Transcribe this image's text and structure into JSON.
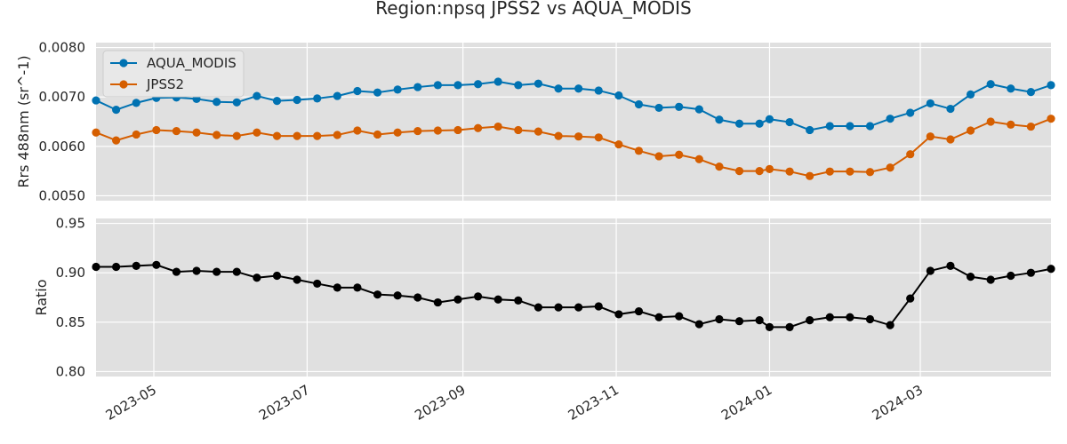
{
  "chart_data": {
    "type": "line",
    "title": "Region:npsq JPSS2 vs AQUA_MODIS",
    "x_dates": [
      "2023-04-08",
      "2023-04-16",
      "2023-04-24",
      "2023-05-02",
      "2023-05-10",
      "2023-05-18",
      "2023-05-26",
      "2023-06-03",
      "2023-06-11",
      "2023-06-19",
      "2023-06-27",
      "2023-07-05",
      "2023-07-13",
      "2023-07-21",
      "2023-07-29",
      "2023-08-06",
      "2023-08-14",
      "2023-08-22",
      "2023-08-30",
      "2023-09-07",
      "2023-09-15",
      "2023-09-23",
      "2023-10-01",
      "2023-10-09",
      "2023-10-17",
      "2023-10-25",
      "2023-11-02",
      "2023-11-10",
      "2023-11-18",
      "2023-11-26",
      "2023-12-04",
      "2023-12-12",
      "2023-12-20",
      "2023-12-28",
      "2024-01-01",
      "2024-01-09",
      "2024-01-17",
      "2024-01-25",
      "2024-02-02",
      "2024-02-10",
      "2024-02-18",
      "2024-02-26",
      "2024-03-05",
      "2024-03-13",
      "2024-03-21",
      "2024-03-29",
      "2024-04-06",
      "2024-04-14",
      "2024-04-22"
    ],
    "xlim": [
      "2023-04-08",
      "2024-04-22"
    ],
    "x_ticks": [
      "2023-05",
      "2023-07",
      "2023-09",
      "2023-11",
      "2024-01",
      "2024-03"
    ],
    "x_tick_dates": [
      "2023-05-01",
      "2023-07-01",
      "2023-09-01",
      "2023-11-01",
      "2024-01-01",
      "2024-03-01"
    ],
    "grid": true,
    "panels": [
      {
        "ylabel": "Rrs 488nm (sr^-1)",
        "ylim": [
          0.0049,
          0.0081
        ],
        "yticks": [
          0.005,
          0.006,
          0.007,
          0.008
        ],
        "ytick_labels": [
          "0.0050",
          "0.0060",
          "0.0070",
          "0.0080"
        ],
        "legend": "top-left",
        "series": [
          {
            "name": "AQUA_MODIS",
            "color": "#0072b2",
            "values": [
              0.00693,
              0.00674,
              0.00688,
              0.00698,
              0.00699,
              0.00696,
              0.0069,
              0.00689,
              0.00702,
              0.00692,
              0.00694,
              0.00697,
              0.00702,
              0.00712,
              0.00709,
              0.00715,
              0.0072,
              0.00724,
              0.00724,
              0.00726,
              0.00731,
              0.00724,
              0.00727,
              0.00717,
              0.00717,
              0.00713,
              0.00703,
              0.00685,
              0.00678,
              0.0068,
              0.00675,
              0.00654,
              0.00646,
              0.00646,
              0.00655,
              0.00649,
              0.00633,
              0.00641,
              0.00641,
              0.00641,
              0.00656,
              0.00668,
              0.00687,
              0.00676,
              0.00705,
              0.00726,
              0.00717,
              0.0071,
              0.00724
            ]
          },
          {
            "name": "JPSS2",
            "color": "#d55e00",
            "values": [
              0.00628,
              0.00612,
              0.00624,
              0.00633,
              0.00631,
              0.00628,
              0.00623,
              0.00621,
              0.00628,
              0.00621,
              0.00621,
              0.00621,
              0.00623,
              0.00632,
              0.00624,
              0.00628,
              0.00631,
              0.00632,
              0.00633,
              0.00637,
              0.0064,
              0.00633,
              0.0063,
              0.00621,
              0.0062,
              0.00618,
              0.00604,
              0.00591,
              0.0058,
              0.00583,
              0.00574,
              0.00559,
              0.0055,
              0.0055,
              0.00554,
              0.00549,
              0.0054,
              0.00549,
              0.00549,
              0.00548,
              0.00557,
              0.00584,
              0.0062,
              0.00614,
              0.00632,
              0.0065,
              0.00644,
              0.0064,
              0.00656
            ]
          }
        ]
      },
      {
        "ylabel": "Ratio",
        "ylim": [
          0.795,
          0.955
        ],
        "yticks": [
          0.8,
          0.85,
          0.9,
          0.95
        ],
        "ytick_labels": [
          "0.80",
          "0.85",
          "0.90",
          "0.95"
        ],
        "series": [
          {
            "name": "",
            "color": "#000000",
            "values": [
              0.906,
              0.906,
              0.907,
              0.908,
              0.901,
              0.902,
              0.901,
              0.901,
              0.895,
              0.897,
              0.893,
              0.889,
              0.885,
              0.885,
              0.878,
              0.877,
              0.875,
              0.87,
              0.873,
              0.876,
              0.873,
              0.872,
              0.865,
              0.865,
              0.865,
              0.866,
              0.858,
              0.861,
              0.855,
              0.856,
              0.848,
              0.853,
              0.851,
              0.852,
              0.845,
              0.845,
              0.852,
              0.855,
              0.855,
              0.853,
              0.847,
              0.874,
              0.902,
              0.907,
              0.896,
              0.893,
              0.897,
              0.9,
              0.904
            ]
          }
        ]
      }
    ]
  }
}
